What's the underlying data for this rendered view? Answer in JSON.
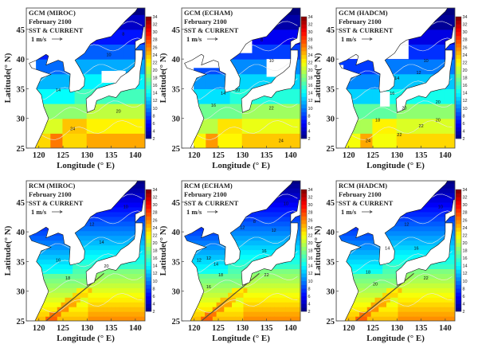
{
  "figure": {
    "axes": {
      "xlabel": "Longitude (° E)",
      "ylabel": "Latitude(° N)",
      "x_ticks": [
        120,
        125,
        130,
        135,
        140
      ],
      "y_ticks": [
        25,
        30,
        35,
        40,
        45
      ],
      "xlim": [
        117.4,
        142
      ],
      "ylim": [
        25,
        48.6
      ]
    },
    "colorbar": {
      "ticks": [
        2,
        4,
        6,
        8,
        10,
        12,
        14,
        16,
        18,
        20,
        22,
        24,
        26,
        28,
        30,
        32,
        34
      ],
      "range": [
        2,
        34
      ]
    },
    "panels": [
      {
        "title": "GCM (MIROC)",
        "date": "February  2100",
        "variable": "SST & CURRENT",
        "scale": "1 m/s",
        "kind": "gcm",
        "contour_labels": [
          {
            "t": "8",
            "lon": 137.5,
            "lat": 44
          },
          {
            "t": "10",
            "lon": 134.5,
            "lat": 40.5
          },
          {
            "t": "14",
            "lon": 124,
            "lat": 34.5
          },
          {
            "t": "20",
            "lon": 136.5,
            "lat": 31
          },
          {
            "t": "24",
            "lon": 127,
            "lat": 28
          }
        ]
      },
      {
        "title": "GCM (ECHAM)",
        "date": "February  2100",
        "variable": "SST & CURRENT",
        "scale": "1 m/s",
        "kind": "gcm",
        "contour_labels": [
          {
            "t": "8",
            "lon": 134,
            "lat": 43
          },
          {
            "t": "10",
            "lon": 136,
            "lat": 39.5
          },
          {
            "t": "14",
            "lon": 126,
            "lat": 34
          },
          {
            "t": "16",
            "lon": 124,
            "lat": 32
          },
          {
            "t": "20",
            "lon": 129,
            "lat": 34.5
          },
          {
            "t": "22",
            "lon": 136,
            "lat": 31.5
          },
          {
            "t": "24",
            "lon": 138,
            "lat": 26
          }
        ]
      },
      {
        "title": "GCM (HADCM)",
        "date": "February  2100",
        "variable": "SST & CURRENT",
        "scale": "1 m/s",
        "kind": "gcm",
        "contour_labels": [
          {
            "t": "10",
            "lon": 136,
            "lat": 39.5
          },
          {
            "t": "12",
            "lon": 134.5,
            "lat": 37.5
          },
          {
            "t": "14",
            "lon": 130,
            "lat": 36.5
          },
          {
            "t": "16",
            "lon": 129,
            "lat": 34
          },
          {
            "t": "18",
            "lon": 126,
            "lat": 29.5
          },
          {
            "t": "20",
            "lon": 131.5,
            "lat": 31.5
          },
          {
            "t": "20",
            "lon": 138.5,
            "lat": 32.5
          },
          {
            "t": "20",
            "lon": 138.5,
            "lat": 29.5
          },
          {
            "t": "22",
            "lon": 135,
            "lat": 28.5
          },
          {
            "t": "22",
            "lon": 130.5,
            "lat": 27
          },
          {
            "t": "24",
            "lon": 124,
            "lat": 26
          }
        ]
      },
      {
        "title": "RCM (MIROC)",
        "date": "February  2100",
        "variable": "SST & CURRENT",
        "scale": "1 m/s",
        "kind": "rcm",
        "contour_labels": [
          {
            "t": "10",
            "lon": 138,
            "lat": 44
          },
          {
            "t": "12",
            "lon": 131,
            "lat": 41
          },
          {
            "t": "14",
            "lon": 133,
            "lat": 38
          },
          {
            "t": "16",
            "lon": 124,
            "lat": 35
          },
          {
            "t": "18",
            "lon": 126,
            "lat": 32
          },
          {
            "t": "20",
            "lon": 134,
            "lat": 34
          }
        ]
      },
      {
        "title": "RCM (ECHAM)",
        "date": "February  2100",
        "variable": "SST & CURRENT",
        "scale": "1 m/s",
        "kind": "rcm",
        "contour_labels": [
          {
            "t": "10",
            "lon": 139,
            "lat": 44.5
          },
          {
            "t": "8",
            "lon": 132.5,
            "lat": 41.5
          },
          {
            "t": "12",
            "lon": 130,
            "lat": 40.5
          },
          {
            "t": "12",
            "lon": 136.5,
            "lat": 40
          },
          {
            "t": "12",
            "lon": 121,
            "lat": 35
          },
          {
            "t": "12",
            "lon": 123,
            "lat": 35.3
          },
          {
            "t": "14",
            "lon": 124.5,
            "lat": 34.3
          },
          {
            "t": "16",
            "lon": 134.5,
            "lat": 36.5
          },
          {
            "t": "18",
            "lon": 125.5,
            "lat": 32.5
          },
          {
            "t": "16",
            "lon": 123,
            "lat": 30.5
          },
          {
            "t": "22",
            "lon": 135,
            "lat": 32.5
          }
        ]
      },
      {
        "title": "RCM (HADCM)",
        "date": "February  2100",
        "variable": "SST & CURRENT",
        "scale": "1 m/s",
        "kind": "rcm",
        "contour_labels": [
          {
            "t": "10",
            "lon": 139,
            "lat": 44
          },
          {
            "t": "12",
            "lon": 132,
            "lat": 41
          },
          {
            "t": "14",
            "lon": 128,
            "lat": 37
          },
          {
            "t": "16",
            "lon": 134,
            "lat": 37
          },
          {
            "t": "18",
            "lon": 124,
            "lat": 33
          },
          {
            "t": "20",
            "lon": 125.5,
            "lat": 31
          },
          {
            "t": "22",
            "lon": 136,
            "lat": 32
          }
        ]
      }
    ]
  },
  "colors": {
    "land": "#ffffff",
    "coast": "#111111",
    "contour": "#e8e8e8",
    "frame": "#444444"
  }
}
